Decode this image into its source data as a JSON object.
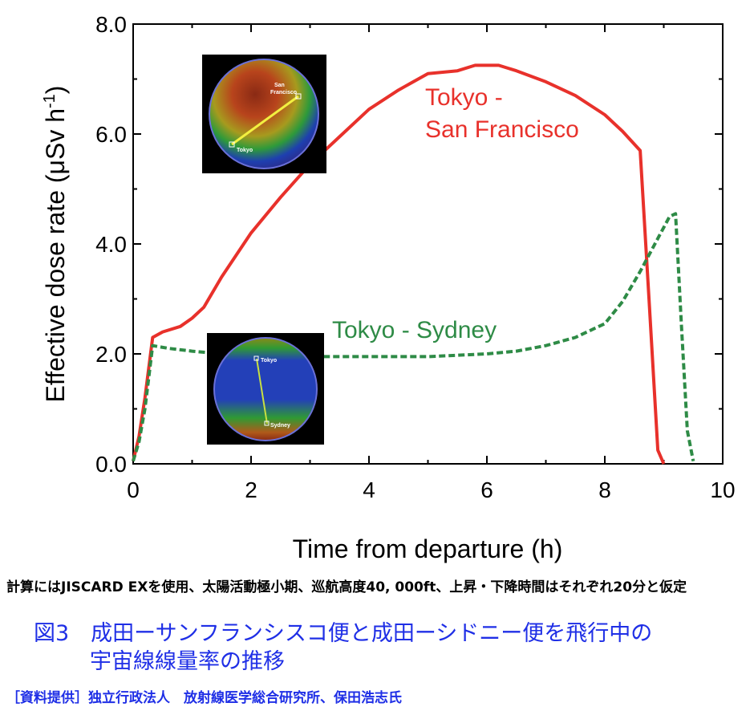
{
  "chart_data": {
    "type": "line",
    "xlabel": "Time from departure (h)",
    "ylabel_main": "Effective dose rate (μSv h",
    "ylabel_sup": "-1",
    "ylabel_close": ")",
    "xlim": [
      0,
      10
    ],
    "ylim": [
      0,
      8
    ],
    "xticks": [
      0,
      2,
      4,
      6,
      8,
      10
    ],
    "xtick_labels": [
      "0",
      "2",
      "4",
      "6",
      "8",
      "10"
    ],
    "yticks": [
      0,
      2,
      4,
      6,
      8
    ],
    "ytick_labels": [
      "0.0",
      "2.0",
      "4.0",
      "6.0",
      "8.0"
    ],
    "grid": false,
    "series": [
      {
        "name_lines": [
          "Tokyo -",
          "San Francisco"
        ],
        "color": "#e8312b",
        "style": "solid",
        "x": [
          0,
          0.1,
          0.2,
          0.33,
          0.5,
          0.8,
          1.0,
          1.2,
          1.5,
          2.0,
          2.5,
          3.0,
          3.5,
          4.0,
          4.5,
          5.0,
          5.5,
          5.8,
          6.2,
          6.5,
          7.0,
          7.5,
          8.0,
          8.3,
          8.6,
          8.75,
          8.9,
          9.0
        ],
        "values": [
          0.05,
          0.5,
          1.2,
          2.3,
          2.4,
          2.5,
          2.65,
          2.85,
          3.4,
          4.2,
          4.85,
          5.45,
          5.95,
          6.45,
          6.8,
          7.1,
          7.15,
          7.25,
          7.25,
          7.15,
          6.95,
          6.7,
          6.35,
          6.05,
          5.7,
          3.0,
          0.25,
          0.0
        ]
      },
      {
        "name": "Tokyo - Sydney",
        "color": "#2e8b46",
        "style": "dashed",
        "x": [
          0,
          0.1,
          0.2,
          0.33,
          0.6,
          1.0,
          1.5,
          2.0,
          3.0,
          4.0,
          5.0,
          6.0,
          6.5,
          7.0,
          7.5,
          7.7,
          8.0,
          8.3,
          8.6,
          8.9,
          9.1,
          9.2,
          9.3,
          9.4,
          9.5
        ],
        "values": [
          0.05,
          0.4,
          1.0,
          2.15,
          2.1,
          2.05,
          2.0,
          1.95,
          1.95,
          1.95,
          1.95,
          2.0,
          2.05,
          2.15,
          2.3,
          2.4,
          2.55,
          2.95,
          3.5,
          4.1,
          4.5,
          4.55,
          2.5,
          0.6,
          0.05
        ]
      }
    ]
  },
  "globes": {
    "upper_label_1": "San",
    "upper_label_2": "Francisco",
    "upper_origin": "Tokyo",
    "lower_origin": "Tokyo",
    "lower_dest": "Sydney"
  },
  "caption": {
    "note": "計算にはJISCARD EXを使用、太陽活動極小期、巡航高度40, 000ft、上昇・下降時間はそれぞれ20分と仮定",
    "title_line1": "図3　成田ーサンフランシスコ便と成田ーシドニー便を飛行中の",
    "title_line2": "宇宙線線量率の推移",
    "credit": "［資料提供］独立行政法人　放射線医学総合研究所、保田浩志氏",
    "title_color": "#1f2fe6"
  }
}
